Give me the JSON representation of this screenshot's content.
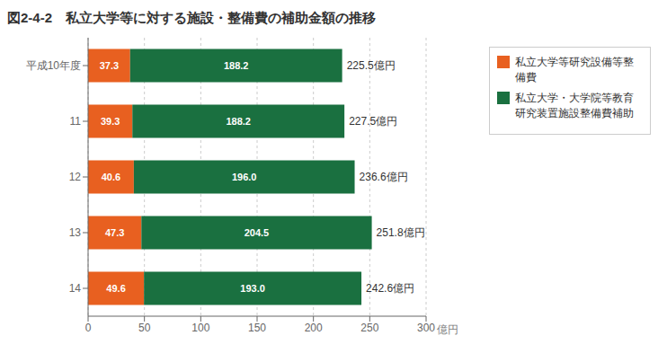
{
  "chart_data": {
    "type": "bar",
    "title": "図2-4-2　私立大学等に対する施設・整備費の補助金額の推移",
    "orientation": "horizontal",
    "stacked": true,
    "categories": [
      "平成10年度",
      "11",
      "12",
      "13",
      "14"
    ],
    "series": [
      {
        "name": "私立大学等研究設備等整備費",
        "color": "#E86020",
        "values": [
          37.3,
          39.3,
          40.6,
          47.3,
          49.6
        ]
      },
      {
        "name": "私立大学・大学院等教育研究装置施設整備費補助",
        "color": "#1A7040",
        "values": [
          188.2,
          188.2,
          196.0,
          204.5,
          193.0
        ],
        "value_labels": [
          "188.2",
          "188.2",
          "196.0",
          "204.5",
          "193.0"
        ]
      }
    ],
    "total_labels": [
      "225.5億円",
      "227.5億円",
      "236.6億円",
      "251.8億円",
      "242.6億円"
    ],
    "xlabel": "億円",
    "xlim": [
      0,
      300
    ],
    "xticks": [
      0,
      50,
      100,
      150,
      200,
      250,
      300
    ],
    "grid": true,
    "data_labels": true,
    "legend": "right"
  }
}
